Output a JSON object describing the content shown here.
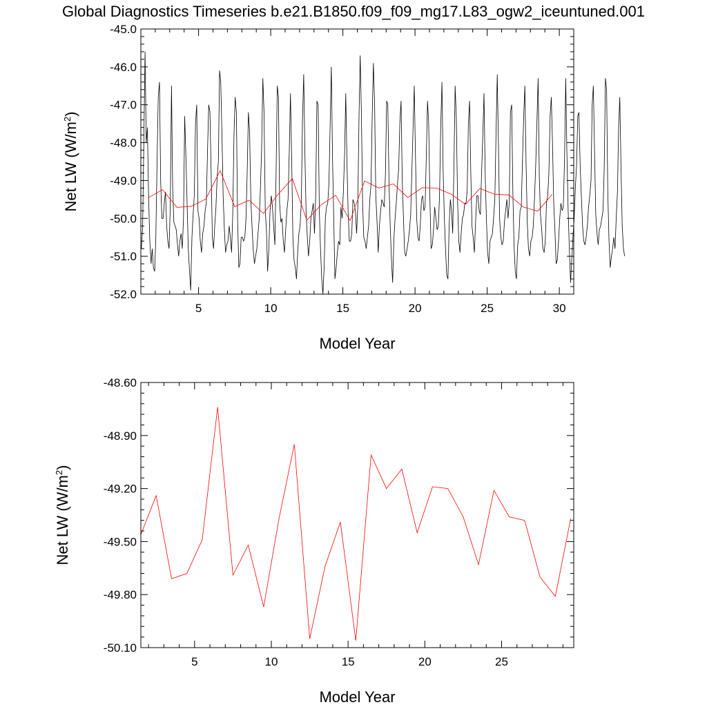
{
  "title": "Global Diagnostics Timeseries b.e21.B1850.f09_f09_mg17.L83_ogw2_iceuntuned.001",
  "colors": {
    "monthly": "#000000",
    "annual": "#ff0000",
    "frame": "#000000"
  },
  "chart_data": [
    {
      "type": "line",
      "xlabel": "Model Year",
      "ylabel_main": "Net LW (W/m",
      "ylabel_sup": "2",
      "ylabel_end": ")",
      "xlim": [
        1.0,
        31.0
      ],
      "ylim": [
        -52.0,
        -45.0
      ],
      "xticks": [
        5,
        10,
        15,
        20,
        25,
        30
      ],
      "xtick_labels": [
        "5",
        "10",
        "15",
        "20",
        "25",
        "30"
      ],
      "yticks": [
        -52.0,
        -51.0,
        -50.0,
        -49.0,
        -48.0,
        -47.0,
        -46.0,
        -45.0
      ],
      "ytick_labels": [
        "-52.0",
        "-51.0",
        "-50.0",
        "-49.0",
        "-48.0",
        "-47.0",
        "-46.0",
        "-45.0"
      ],
      "grid": false,
      "series": [
        {
          "color": "#000000",
          "x_start": 1.04,
          "x_step": 0.0833,
          "values": [
            -50.8,
            -50.2,
            -48.0,
            -45.6,
            -48.0,
            -47.6,
            -49.5,
            -50.6,
            -51.2,
            -50.8,
            -51.3,
            -51.4,
            -50.5,
            -48.5,
            -46.8,
            -46.4,
            -49.0,
            -50.0,
            -50.0,
            -49.6,
            -49.3,
            -50.2,
            -50.6,
            -50.8,
            -49.7,
            -46.5,
            -49.2,
            -50.1,
            -50.2,
            -50.3,
            -50.7,
            -51.0,
            -50.6,
            -50.4,
            -50.8,
            -50.0,
            -47.3,
            -48.4,
            -49.6,
            -50.8,
            -51.4,
            -51.9,
            -50.5,
            -49.9,
            -49.4,
            -47.5,
            -47.0,
            -49.8,
            -50.0,
            -50.6,
            -50.9,
            -50.4,
            -50.2,
            -49.8,
            -49.6,
            -48.2,
            -47.0,
            -47.2,
            -48.8,
            -50.5,
            -50.8,
            -50.2,
            -49.7,
            -48.9,
            -48.5,
            -46.1,
            -46.4,
            -47.8,
            -49.4,
            -50.3,
            -50.9,
            -50.7,
            -50.6,
            -50.2,
            -50.5,
            -50.9,
            -49.9,
            -47.8,
            -46.8,
            -47.2,
            -50.0,
            -51.3,
            -51.2,
            -50.5,
            -50.5,
            -50.6,
            -50.5,
            -50.0,
            -48.8,
            -47.2,
            -47.7,
            -49.5,
            -50.2,
            -50.8,
            -51.2,
            -51.0,
            -50.8,
            -50.4,
            -50.0,
            -49.2,
            -48.2,
            -46.3,
            -47.2,
            -49.8,
            -50.3,
            -51.4,
            -50.8,
            -49.8,
            -49.4,
            -49.7,
            -50.2,
            -50.7,
            -48.9,
            -46.5,
            -46.8,
            -49.6,
            -50.1,
            -50.0,
            -50.6,
            -50.9,
            -50.3,
            -49.8,
            -49.5,
            -48.2,
            -46.7,
            -48.5,
            -50.5,
            -51.1,
            -51.3,
            -51.6,
            -50.9,
            -50.4,
            -50.2,
            -49.6,
            -47.4,
            -46.2,
            -48.3,
            -49.8,
            -50.5,
            -51.0,
            -50.6,
            -50.0,
            -49.8,
            -49.6,
            -50.4,
            -49.4,
            -46.9,
            -47.0,
            -49.8,
            -50.8,
            -51.6,
            -52.0,
            -51.3,
            -50.0,
            -49.7,
            -49.6,
            -49.1,
            -47.5,
            -46.0,
            -48.5,
            -50.0,
            -51.6,
            -51.3,
            -50.9,
            -50.6,
            -50.7,
            -49.7,
            -50.0,
            -49.3,
            -48.3,
            -46.7,
            -48.5,
            -49.9,
            -50.6,
            -50.6,
            -50.4,
            -49.5,
            -49.6,
            -49.8,
            -50.4,
            -49.7,
            -47.3,
            -45.7,
            -47.2,
            -49.6,
            -50.5,
            -50.6,
            -50.8,
            -50.5,
            -50.2,
            -49.5,
            -49.1,
            -47.3,
            -45.9,
            -47.0,
            -49.4,
            -50.1,
            -50.9,
            -50.2,
            -49.8,
            -49.5,
            -49.6,
            -49.7,
            -48.8,
            -46.9,
            -47.0,
            -49.1,
            -50.2,
            -51.1,
            -51.7,
            -50.6,
            -50.0,
            -49.6,
            -49.1,
            -48.7,
            -47.5,
            -46.9,
            -49.0,
            -50.0,
            -50.9,
            -51.0,
            -50.8,
            -50.6,
            -50.3,
            -49.9,
            -48.7,
            -47.6,
            -46.5,
            -48.4,
            -50.0,
            -50.5,
            -50.6,
            -50.2,
            -49.5,
            -49.4,
            -49.8,
            -49.7,
            -48.4,
            -46.9,
            -47.5,
            -49.5,
            -50.8,
            -50.7,
            -50.3,
            -49.7,
            -50.0,
            -50.3,
            -50.2,
            -49.4,
            -47.6,
            -46.4,
            -48.7,
            -50.0,
            -50.8,
            -51.5,
            -51.6,
            -50.2,
            -49.5,
            -49.8,
            -50.4,
            -48.6,
            -46.5,
            -47.4,
            -49.5,
            -50.6,
            -50.9,
            -50.4,
            -50.0,
            -49.9,
            -49.6,
            -49.6,
            -49.3,
            -47.5,
            -46.9,
            -48.8,
            -50.2,
            -50.5,
            -50.9,
            -50.1,
            -49.4,
            -49.4,
            -49.8,
            -49.9,
            -48.8,
            -47.8,
            -46.7,
            -48.9,
            -50.0,
            -50.9,
            -51.2,
            -50.6,
            -50.5,
            -50.4,
            -50.0,
            -49.5,
            -47.8,
            -46.2,
            -48.0,
            -50.0,
            -50.5,
            -50.7,
            -50.6,
            -50.1,
            -49.8,
            -49.5,
            -50.0,
            -49.6,
            -47.2,
            -47.0,
            -49.3,
            -50.7,
            -51.4,
            -51.6,
            -50.7,
            -50.5,
            -49.8,
            -49.7,
            -48.5,
            -47.3,
            -46.5,
            -48.5,
            -50.1,
            -50.8,
            -51.0,
            -50.6,
            -50.5,
            -50.2,
            -49.5,
            -48.6,
            -47.5,
            -46.3,
            -48.9,
            -49.9,
            -50.3,
            -50.8,
            -50.9,
            -50.6,
            -49.6,
            -49.4,
            -48.8,
            -47.3,
            -46.8,
            -48.0,
            -49.6,
            -50.3,
            -51.2,
            -51.1,
            -50.6,
            -50.0,
            -49.6,
            -49.8,
            -49.7,
            -48.4,
            -46.3,
            -48.3,
            -49.8,
            -50.8,
            -51.7,
            -51.1,
            -50.5,
            -50.0,
            -49.2,
            -48.6,
            -47.3,
            -47.2,
            -48.6,
            -49.4,
            -50.2,
            -50.6,
            -50.7,
            -50.5,
            -50.2,
            -49.7,
            -49.4,
            -49.0,
            -47.0,
            -46.5,
            -48.3,
            -49.9,
            -50.4,
            -50.7,
            -50.3,
            -50.2,
            -50.0,
            -49.8,
            -48.7,
            -46.3,
            -46.6,
            -49.3,
            -50.6,
            -51.3,
            -51.0,
            -50.8,
            -50.5,
            -50.8,
            -50.0,
            -49.3,
            -47.6,
            -46.8,
            -48.7,
            -50.2,
            -50.8,
            -51.0
          ]
        },
        {
          "color": "#ff0000",
          "x": [
            1.5,
            2.5,
            3.5,
            4.5,
            5.5,
            6.5,
            7.5,
            8.5,
            9.5,
            10.5,
            11.5,
            12.5,
            13.5,
            14.5,
            15.5,
            16.5,
            17.5,
            18.5,
            19.5,
            20.5,
            21.5,
            22.5,
            23.5,
            24.5,
            25.5,
            26.5,
            27.5,
            28.5,
            29.5
          ],
          "values": [
            -49.46,
            -49.24,
            -49.71,
            -49.68,
            -49.49,
            -48.74,
            -49.69,
            -49.52,
            -49.87,
            -49.37,
            -48.95,
            -50.05,
            -49.64,
            -49.39,
            -50.06,
            -49.01,
            -49.2,
            -49.09,
            -49.45,
            -49.19,
            -49.2,
            -49.36,
            -49.63,
            -49.21,
            -49.36,
            -49.38,
            -49.7,
            -49.81,
            -49.37
          ]
        }
      ]
    },
    {
      "type": "line",
      "xlabel": "Model Year",
      "ylabel_main": "Net LW (W/m",
      "ylabel_sup": "2",
      "ylabel_end": ")",
      "xlim": [
        1.5,
        29.7
      ],
      "ylim": [
        -50.1,
        -48.6
      ],
      "xticks": [
        5,
        10,
        15,
        20,
        25
      ],
      "xtick_labels": [
        "5",
        "10",
        "15",
        "20",
        "25"
      ],
      "yticks": [
        -50.1,
        -49.8,
        -49.5,
        -49.2,
        -48.9,
        -48.6
      ],
      "ytick_labels": [
        "-50.10",
        "-49.80",
        "-49.50",
        "-49.20",
        "-48.90",
        "-48.60"
      ],
      "grid": false,
      "series": [
        {
          "color": "#ff0000",
          "x": [
            1.5,
            2.5,
            3.5,
            4.5,
            5.5,
            6.5,
            7.5,
            8.5,
            9.5,
            10.5,
            11.5,
            12.5,
            13.5,
            14.5,
            15.5,
            16.5,
            17.5,
            18.5,
            19.5,
            20.5,
            21.5,
            22.5,
            23.5,
            24.5,
            25.5,
            26.5,
            27.5,
            28.5,
            29.5
          ],
          "values": [
            -49.46,
            -49.24,
            -49.71,
            -49.68,
            -49.49,
            -48.74,
            -49.69,
            -49.52,
            -49.87,
            -49.37,
            -48.95,
            -50.05,
            -49.64,
            -49.39,
            -50.06,
            -49.01,
            -49.2,
            -49.09,
            -49.45,
            -49.19,
            -49.2,
            -49.36,
            -49.63,
            -49.21,
            -49.36,
            -49.38,
            -49.7,
            -49.81,
            -49.37
          ]
        }
      ]
    }
  ]
}
